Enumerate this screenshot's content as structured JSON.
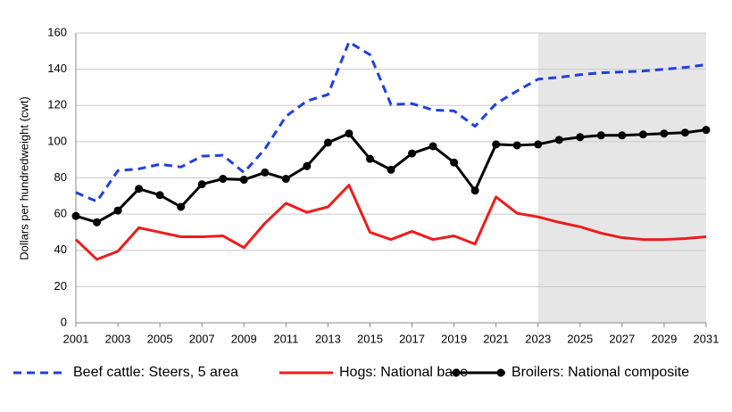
{
  "chart_data": {
    "type": "line",
    "y_label": "Dollars per hundredweight (cwt)",
    "x": [
      2001,
      2002,
      2003,
      2004,
      2005,
      2006,
      2007,
      2008,
      2009,
      2010,
      2011,
      2012,
      2013,
      2014,
      2015,
      2016,
      2017,
      2018,
      2019,
      2020,
      2021,
      2022,
      2023,
      2024,
      2025,
      2026,
      2027,
      2028,
      2029,
      2030,
      2031
    ],
    "xlim": [
      2001,
      2031
    ],
    "xticks": [
      2001,
      2003,
      2005,
      2007,
      2009,
      2011,
      2013,
      2015,
      2017,
      2019,
      2021,
      2023,
      2025,
      2027,
      2029,
      2031
    ],
    "ylim": [
      0,
      160
    ],
    "yticks": [
      0,
      20,
      40,
      60,
      80,
      100,
      120,
      140,
      160
    ],
    "grid": true,
    "shade_x": [
      2023,
      2031
    ],
    "shade_color": "#e6e6e6",
    "legend": "bottom",
    "series": [
      {
        "name": "Beef cattle: Steers, 5 area",
        "color": "#1f3fe0",
        "style": "dashed",
        "marker": "none",
        "values": [
          72,
          67,
          84,
          85,
          87.5,
          86,
          92,
          92.5,
          83,
          96,
          114,
          122.5,
          126,
          155,
          148,
          120.5,
          121,
          117.5,
          117,
          108.5,
          121,
          128,
          134.5,
          135.5,
          137,
          138,
          138.5,
          139,
          140,
          141,
          142.5
        ]
      },
      {
        "name": "Hogs: National base",
        "color": "#ee1c1c",
        "style": "solid",
        "marker": "none",
        "values": [
          46,
          35,
          39.5,
          52.5,
          50,
          47.5,
          47.5,
          48,
          41.5,
          55,
          66,
          61,
          64,
          76,
          50,
          46,
          50.5,
          46,
          48,
          43.5,
          69.5,
          60.5,
          58.5,
          55.5,
          53,
          49.5,
          47,
          46,
          46,
          46.5,
          47.5
        ]
      },
      {
        "name": "Broilers: National composite",
        "color": "#000000",
        "style": "solid",
        "marker": "circle",
        "values": [
          59,
          55.5,
          62,
          74,
          70.5,
          64,
          76.5,
          79.5,
          79,
          83,
          79.5,
          86.5,
          99.5,
          104.5,
          90.5,
          84.5,
          93.5,
          97.5,
          88.5,
          73,
          98.5,
          98,
          98.5,
          101,
          102.5,
          103.5,
          103.5,
          104,
          104.5,
          105,
          106.5
        ]
      }
    ]
  }
}
